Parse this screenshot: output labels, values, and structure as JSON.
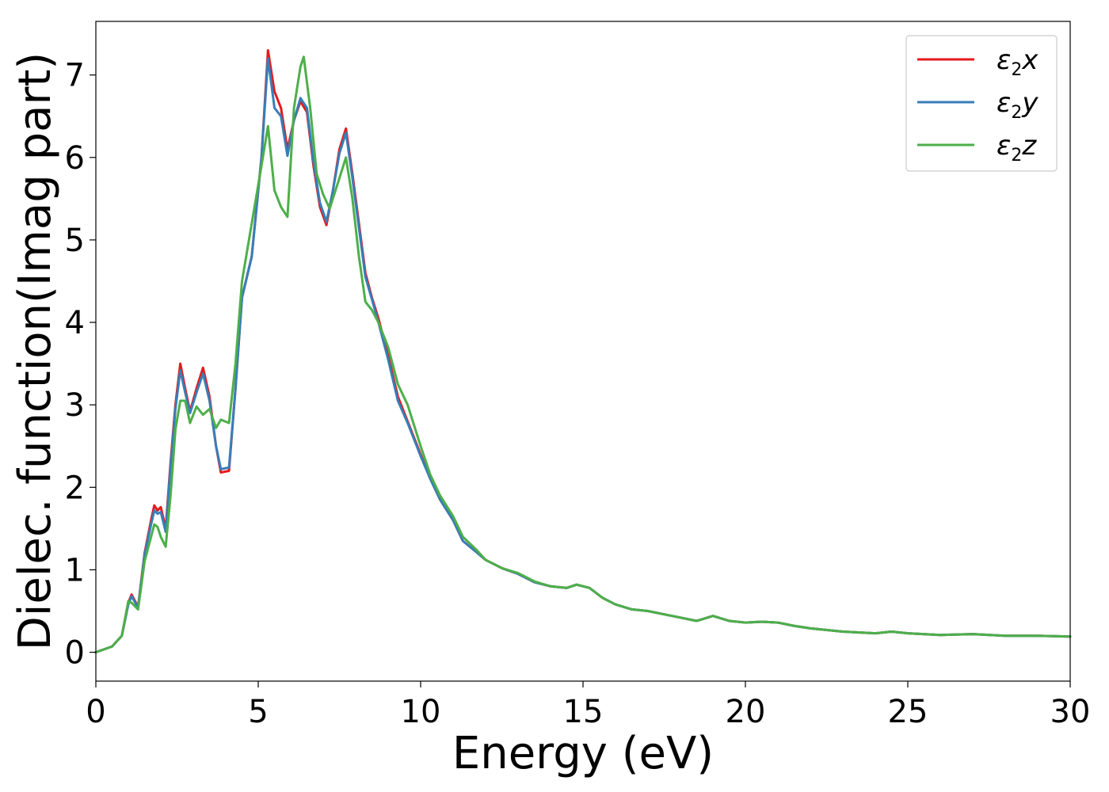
{
  "chart_data": {
    "type": "line",
    "xlabel": "Energy (eV)",
    "ylabel": "Dielec. function(Imag part)",
    "xlim": [
      0,
      30
    ],
    "ylim": [
      -0.35,
      7.65
    ],
    "xticks": [
      0,
      5,
      10,
      15,
      20,
      25,
      30
    ],
    "yticks": [
      0,
      1,
      2,
      3,
      4,
      5,
      6,
      7
    ],
    "grid": false,
    "legend_position": "top-right",
    "series": [
      {
        "name": "ε₂x",
        "legend_base": "ε",
        "legend_sub": "2",
        "legend_var": "x",
        "color": "#e41a1c",
        "points": [
          [
            0,
            0
          ],
          [
            0.5,
            0.07
          ],
          [
            0.8,
            0.2
          ],
          [
            1.0,
            0.6
          ],
          [
            1.1,
            0.7
          ],
          [
            1.3,
            0.55
          ],
          [
            1.5,
            1.2
          ],
          [
            1.7,
            1.6
          ],
          [
            1.8,
            1.78
          ],
          [
            1.9,
            1.72
          ],
          [
            2.0,
            1.76
          ],
          [
            2.15,
            1.5
          ],
          [
            2.3,
            2.3
          ],
          [
            2.45,
            3.0
          ],
          [
            2.6,
            3.5
          ],
          [
            2.75,
            3.2
          ],
          [
            2.9,
            2.92
          ],
          [
            3.1,
            3.2
          ],
          [
            3.3,
            3.45
          ],
          [
            3.5,
            3.1
          ],
          [
            3.7,
            2.5
          ],
          [
            3.85,
            2.18
          ],
          [
            4.1,
            2.2
          ],
          [
            4.3,
            3.2
          ],
          [
            4.5,
            4.3
          ],
          [
            4.8,
            4.8
          ],
          [
            5.1,
            6.0
          ],
          [
            5.3,
            7.3
          ],
          [
            5.5,
            6.8
          ],
          [
            5.7,
            6.6
          ],
          [
            5.9,
            6.1
          ],
          [
            6.1,
            6.45
          ],
          [
            6.3,
            6.68
          ],
          [
            6.5,
            6.55
          ],
          [
            6.7,
            5.9
          ],
          [
            6.9,
            5.4
          ],
          [
            7.1,
            5.18
          ],
          [
            7.3,
            5.6
          ],
          [
            7.5,
            6.1
          ],
          [
            7.7,
            6.35
          ],
          [
            7.9,
            5.8
          ],
          [
            8.1,
            5.2
          ],
          [
            8.3,
            4.6
          ],
          [
            8.5,
            4.3
          ],
          [
            8.7,
            4.05
          ],
          [
            9.0,
            3.6
          ],
          [
            9.3,
            3.1
          ],
          [
            9.6,
            2.8
          ],
          [
            10.0,
            2.4
          ],
          [
            10.3,
            2.1
          ],
          [
            10.6,
            1.85
          ],
          [
            11.0,
            1.6
          ],
          [
            11.3,
            1.35
          ],
          [
            11.7,
            1.22
          ],
          [
            12.0,
            1.12
          ],
          [
            12.5,
            1.02
          ],
          [
            13.0,
            0.95
          ],
          [
            13.5,
            0.85
          ],
          [
            14.0,
            0.8
          ],
          [
            14.5,
            0.78
          ],
          [
            14.8,
            0.82
          ],
          [
            15.2,
            0.78
          ],
          [
            15.6,
            0.66
          ],
          [
            16.0,
            0.58
          ],
          [
            16.5,
            0.52
          ],
          [
            17.0,
            0.5
          ],
          [
            17.5,
            0.46
          ],
          [
            18.0,
            0.42
          ],
          [
            18.5,
            0.38
          ],
          [
            19.0,
            0.44
          ],
          [
            19.5,
            0.38
          ],
          [
            20.0,
            0.36
          ],
          [
            20.5,
            0.37
          ],
          [
            21.0,
            0.36
          ],
          [
            21.5,
            0.32
          ],
          [
            22.0,
            0.29
          ],
          [
            23.0,
            0.25
          ],
          [
            24.0,
            0.23
          ],
          [
            24.5,
            0.25
          ],
          [
            25.0,
            0.23
          ],
          [
            26.0,
            0.21
          ],
          [
            27.0,
            0.22
          ],
          [
            28.0,
            0.2
          ],
          [
            29.0,
            0.2
          ],
          [
            30.0,
            0.19
          ]
        ]
      },
      {
        "name": "ε₂y",
        "legend_base": "ε",
        "legend_sub": "2",
        "legend_var": "y",
        "color": "#377eb8",
        "points": [
          [
            0,
            0
          ],
          [
            0.5,
            0.07
          ],
          [
            0.8,
            0.2
          ],
          [
            1.0,
            0.58
          ],
          [
            1.1,
            0.68
          ],
          [
            1.3,
            0.54
          ],
          [
            1.5,
            1.18
          ],
          [
            1.7,
            1.55
          ],
          [
            1.8,
            1.72
          ],
          [
            1.9,
            1.68
          ],
          [
            2.0,
            1.7
          ],
          [
            2.15,
            1.46
          ],
          [
            2.3,
            2.25
          ],
          [
            2.45,
            2.95
          ],
          [
            2.6,
            3.42
          ],
          [
            2.75,
            3.15
          ],
          [
            2.9,
            2.9
          ],
          [
            3.1,
            3.15
          ],
          [
            3.3,
            3.38
          ],
          [
            3.5,
            3.05
          ],
          [
            3.7,
            2.5
          ],
          [
            3.85,
            2.22
          ],
          [
            4.1,
            2.24
          ],
          [
            4.3,
            3.2
          ],
          [
            4.5,
            4.3
          ],
          [
            4.8,
            4.8
          ],
          [
            5.1,
            6.0
          ],
          [
            5.3,
            7.2
          ],
          [
            5.5,
            6.6
          ],
          [
            5.7,
            6.5
          ],
          [
            5.9,
            6.02
          ],
          [
            6.1,
            6.45
          ],
          [
            6.3,
            6.72
          ],
          [
            6.5,
            6.6
          ],
          [
            6.7,
            5.95
          ],
          [
            6.9,
            5.45
          ],
          [
            7.1,
            5.22
          ],
          [
            7.3,
            5.6
          ],
          [
            7.5,
            6.05
          ],
          [
            7.7,
            6.3
          ],
          [
            7.9,
            5.75
          ],
          [
            8.1,
            5.15
          ],
          [
            8.3,
            4.55
          ],
          [
            8.5,
            4.28
          ],
          [
            8.7,
            4.0
          ],
          [
            9.0,
            3.55
          ],
          [
            9.3,
            3.05
          ],
          [
            9.6,
            2.78
          ],
          [
            10.0,
            2.38
          ],
          [
            10.3,
            2.1
          ],
          [
            10.6,
            1.85
          ],
          [
            11.0,
            1.6
          ],
          [
            11.3,
            1.35
          ],
          [
            11.7,
            1.22
          ],
          [
            12.0,
            1.12
          ],
          [
            12.5,
            1.02
          ],
          [
            13.0,
            0.95
          ],
          [
            13.5,
            0.85
          ],
          [
            14.0,
            0.8
          ],
          [
            14.5,
            0.78
          ],
          [
            14.8,
            0.82
          ],
          [
            15.2,
            0.78
          ],
          [
            15.6,
            0.66
          ],
          [
            16.0,
            0.58
          ],
          [
            16.5,
            0.52
          ],
          [
            17.0,
            0.5
          ],
          [
            17.5,
            0.46
          ],
          [
            18.0,
            0.42
          ],
          [
            18.5,
            0.38
          ],
          [
            19.0,
            0.44
          ],
          [
            19.5,
            0.38
          ],
          [
            20.0,
            0.36
          ],
          [
            20.5,
            0.37
          ],
          [
            21.0,
            0.36
          ],
          [
            21.5,
            0.32
          ],
          [
            22.0,
            0.29
          ],
          [
            23.0,
            0.25
          ],
          [
            24.0,
            0.23
          ],
          [
            24.5,
            0.25
          ],
          [
            25.0,
            0.23
          ],
          [
            26.0,
            0.21
          ],
          [
            27.0,
            0.22
          ],
          [
            28.0,
            0.2
          ],
          [
            29.0,
            0.2
          ],
          [
            30.0,
            0.19
          ]
        ]
      },
      {
        "name": "ε₂z",
        "legend_base": "ε",
        "legend_sub": "2",
        "legend_var": "z",
        "color": "#4daf4a",
        "points": [
          [
            0,
            0
          ],
          [
            0.5,
            0.07
          ],
          [
            0.8,
            0.2
          ],
          [
            1.0,
            0.62
          ],
          [
            1.1,
            0.6
          ],
          [
            1.3,
            0.52
          ],
          [
            1.5,
            1.1
          ],
          [
            1.7,
            1.4
          ],
          [
            1.8,
            1.55
          ],
          [
            1.9,
            1.52
          ],
          [
            2.0,
            1.4
          ],
          [
            2.15,
            1.28
          ],
          [
            2.3,
            1.9
          ],
          [
            2.45,
            2.7
          ],
          [
            2.6,
            3.05
          ],
          [
            2.75,
            3.05
          ],
          [
            2.9,
            2.78
          ],
          [
            3.1,
            2.98
          ],
          [
            3.3,
            2.88
          ],
          [
            3.5,
            2.95
          ],
          [
            3.7,
            2.72
          ],
          [
            3.85,
            2.82
          ],
          [
            4.1,
            2.78
          ],
          [
            4.3,
            3.5
          ],
          [
            4.5,
            4.5
          ],
          [
            4.8,
            5.2
          ],
          [
            5.1,
            5.9
          ],
          [
            5.3,
            6.38
          ],
          [
            5.5,
            5.6
          ],
          [
            5.7,
            5.4
          ],
          [
            5.9,
            5.28
          ],
          [
            6.1,
            6.6
          ],
          [
            6.3,
            7.1
          ],
          [
            6.4,
            7.22
          ],
          [
            6.6,
            6.6
          ],
          [
            6.8,
            5.8
          ],
          [
            7.0,
            5.55
          ],
          [
            7.2,
            5.38
          ],
          [
            7.5,
            5.75
          ],
          [
            7.7,
            6.0
          ],
          [
            7.9,
            5.5
          ],
          [
            8.1,
            4.8
          ],
          [
            8.3,
            4.25
          ],
          [
            8.5,
            4.15
          ],
          [
            8.7,
            4.0
          ],
          [
            9.0,
            3.7
          ],
          [
            9.3,
            3.25
          ],
          [
            9.6,
            3.0
          ],
          [
            10.0,
            2.5
          ],
          [
            10.3,
            2.15
          ],
          [
            10.6,
            1.9
          ],
          [
            11.0,
            1.65
          ],
          [
            11.3,
            1.4
          ],
          [
            11.7,
            1.25
          ],
          [
            12.0,
            1.12
          ],
          [
            12.5,
            1.02
          ],
          [
            13.0,
            0.96
          ],
          [
            13.5,
            0.86
          ],
          [
            14.0,
            0.8
          ],
          [
            14.5,
            0.78
          ],
          [
            14.8,
            0.82
          ],
          [
            15.2,
            0.78
          ],
          [
            15.6,
            0.66
          ],
          [
            16.0,
            0.58
          ],
          [
            16.5,
            0.52
          ],
          [
            17.0,
            0.5
          ],
          [
            17.5,
            0.46
          ],
          [
            18.0,
            0.42
          ],
          [
            18.5,
            0.38
          ],
          [
            19.0,
            0.44
          ],
          [
            19.5,
            0.38
          ],
          [
            20.0,
            0.36
          ],
          [
            20.5,
            0.37
          ],
          [
            21.0,
            0.36
          ],
          [
            21.5,
            0.32
          ],
          [
            22.0,
            0.29
          ],
          [
            23.0,
            0.25
          ],
          [
            24.0,
            0.23
          ],
          [
            24.5,
            0.25
          ],
          [
            25.0,
            0.23
          ],
          [
            26.0,
            0.21
          ],
          [
            27.0,
            0.22
          ],
          [
            28.0,
            0.2
          ],
          [
            29.0,
            0.2
          ],
          [
            30.0,
            0.19
          ]
        ]
      }
    ]
  }
}
